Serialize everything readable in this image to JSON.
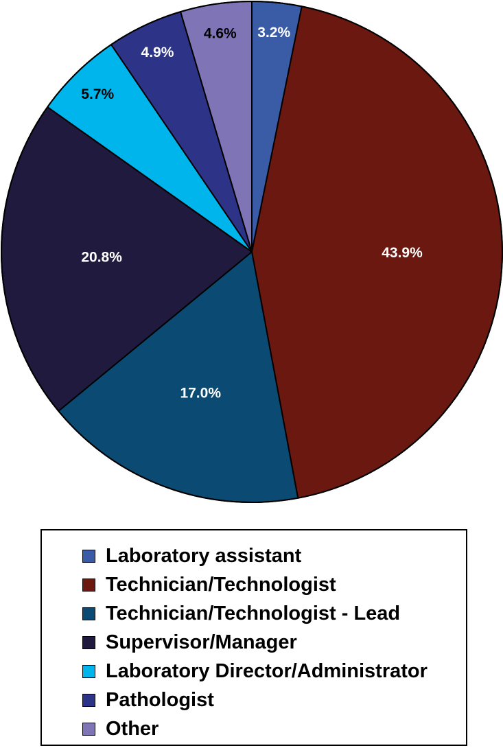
{
  "chart_data": {
    "type": "pie",
    "start_angle_deg": 0,
    "direction": "clockwise",
    "slices": [
      {
        "name": "Laboratory assistant",
        "value": 3.2,
        "label": "3.2%",
        "color": "#3a5ba5",
        "label_color": "#ffffff"
      },
      {
        "name": "Technician/Technologist",
        "value": 43.9,
        "label": "43.9%",
        "color": "#6a1810",
        "label_color": "#ffffff"
      },
      {
        "name": "Technician/Technologist - Lead",
        "value": 17.0,
        "label": "17.0%",
        "color": "#0b4a72",
        "label_color": "#ffffff"
      },
      {
        "name": "Supervisor/Manager",
        "value": 20.8,
        "label": "20.8%",
        "color": "#201a3e",
        "label_color": "#ffffff"
      },
      {
        "name": "Laboratory Director/Administrator",
        "value": 5.7,
        "label": "5.7%",
        "color": "#00b4ec",
        "label_color": "#000000"
      },
      {
        "name": "Pathologist",
        "value": 4.9,
        "label": "4.9%",
        "color": "#2d3387",
        "label_color": "#ffffff"
      },
      {
        "name": "Other",
        "value": 4.6,
        "label": "4.6%",
        "color": "#7f74b6",
        "label_color": "#000000"
      }
    ],
    "legend_position": "bottom"
  }
}
